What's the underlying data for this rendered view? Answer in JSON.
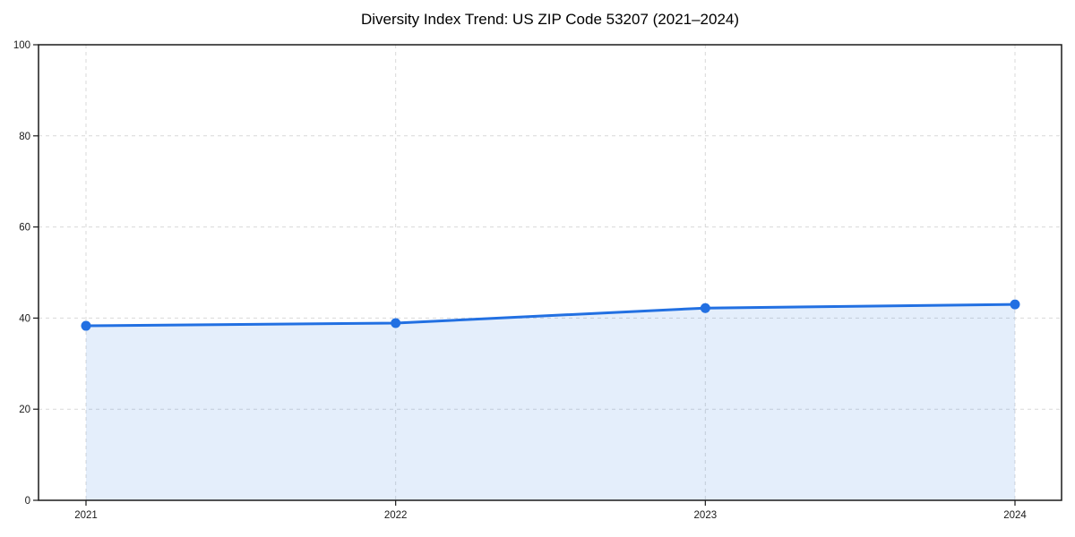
{
  "chart": {
    "title": "Diversity Index Trend: US ZIP Code 53207 (2021–2024)"
  },
  "chart_data": {
    "type": "area",
    "title": "Diversity Index Trend: US ZIP Code 53207 (2021–2024)",
    "x": [
      "2021",
      "2022",
      "2023",
      "2024"
    ],
    "series": [
      {
        "name": "Diversity Index",
        "values": [
          38.3,
          38.9,
          42.2,
          43.0
        ]
      }
    ],
    "xlabel": "",
    "ylabel": "",
    "ylim": [
      0,
      100
    ],
    "yticks": [
      0,
      20,
      40,
      60,
      80,
      100
    ],
    "grid": "dashed",
    "legend": false,
    "marker": "circle",
    "colors": {
      "line": "#2270e2",
      "marker": "#2270e2",
      "fill": "#2270e2",
      "fill_opacity": "0.12",
      "grid": "#d9d9d9",
      "axis": "#1a1a1a",
      "tick_text": "#1a1a1a",
      "background": "#ffffff"
    }
  }
}
